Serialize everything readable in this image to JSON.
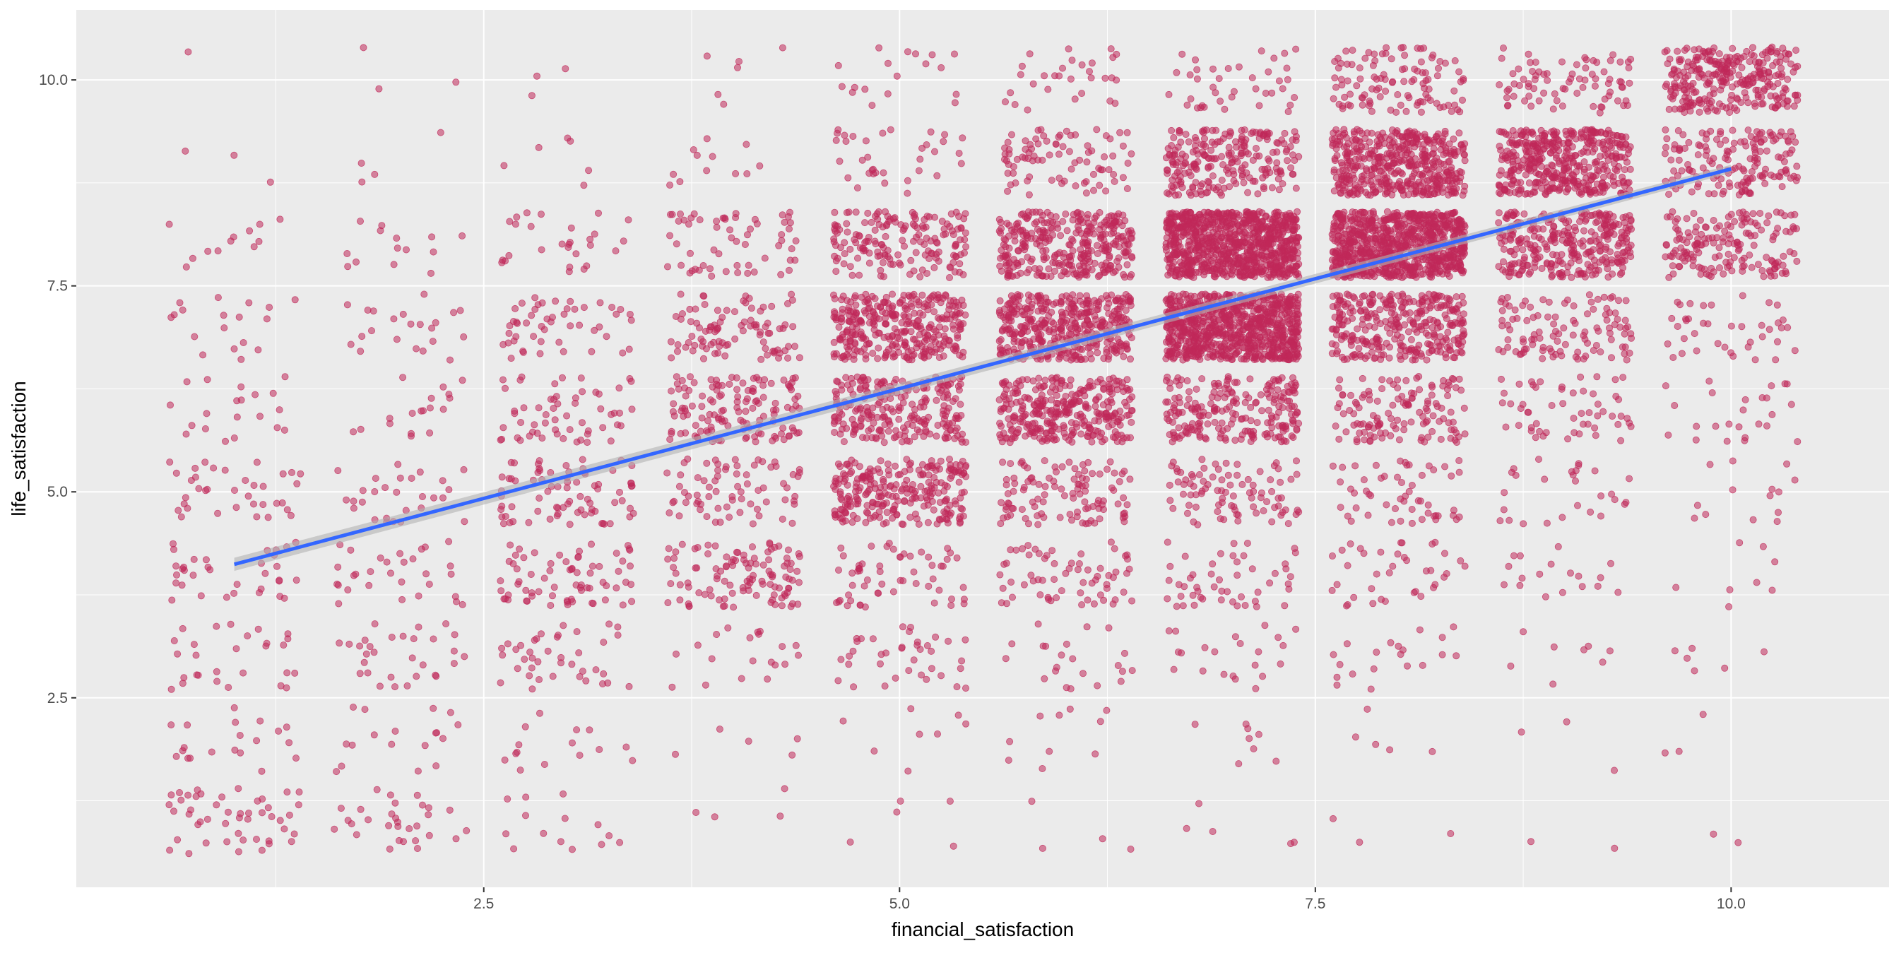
{
  "chart_data": {
    "type": "scatter",
    "title": "",
    "xlabel": "financial_satisfaction",
    "ylabel": "life_satisfaction",
    "xlim": [
      0.05,
      10.95
    ],
    "ylim": [
      0.2,
      10.85
    ],
    "x_ticks": [
      {
        "value": 2.5,
        "label": "2.5"
      },
      {
        "value": 5.0,
        "label": "5.0"
      },
      {
        "value": 7.5,
        "label": "7.5"
      },
      {
        "value": 10.0,
        "label": "10.0"
      }
    ],
    "y_ticks": [
      {
        "value": 2.5,
        "label": "2.5"
      },
      {
        "value": 5.0,
        "label": "5.0"
      },
      {
        "value": 7.5,
        "label": "7.5"
      },
      {
        "value": 10.0,
        "label": "10.0"
      }
    ],
    "grid": true,
    "panel_background": "#ebebeb",
    "point_color": "#c0285a",
    "point_opacity": 0.55,
    "jitter": {
      "x": 0.4,
      "y": 0.4
    },
    "point_groups": [
      {
        "x": 1,
        "counts": {
          "1": 48,
          "2": 20,
          "3": 28,
          "4": 34,
          "5": 36,
          "6": 20,
          "7": 18,
          "8": 12,
          "9": 3,
          "10": 1
        }
      },
      {
        "x": 2,
        "counts": {
          "1": 30,
          "2": 18,
          "3": 30,
          "4": 30,
          "5": 28,
          "6": 18,
          "7": 22,
          "8": 14,
          "9": 4,
          "10": 3
        }
      },
      {
        "x": 3,
        "counts": {
          "1": 14,
          "2": 15,
          "3": 40,
          "4": 70,
          "5": 78,
          "6": 58,
          "7": 50,
          "8": 28,
          "9": 6,
          "10": 3
        }
      },
      {
        "x": 4,
        "counts": {
          "1": 4,
          "2": 5,
          "3": 20,
          "4": 110,
          "5": 72,
          "6": 135,
          "7": 95,
          "8": 60,
          "9": 12,
          "10": 6
        }
      },
      {
        "x": 5,
        "counts": {
          "1": 5,
          "2": 8,
          "3": 38,
          "4": 58,
          "5": 260,
          "6": 240,
          "7": 330,
          "8": 170,
          "9": 35,
          "10": 18
        }
      },
      {
        "x": 6,
        "counts": {
          "1": 4,
          "2": 10,
          "3": 22,
          "4": 65,
          "5": 110,
          "6": 320,
          "7": 420,
          "8": 330,
          "9": 85,
          "10": 30
        }
      },
      {
        "x": 7,
        "counts": {
          "1": 5,
          "2": 8,
          "3": 22,
          "4": 50,
          "5": 90,
          "6": 220,
          "7": 820,
          "8": 850,
          "9": 230,
          "10": 40
        }
      },
      {
        "x": 8,
        "counts": {
          "1": 3,
          "2": 5,
          "3": 20,
          "4": 38,
          "5": 55,
          "6": 130,
          "7": 320,
          "8": 850,
          "9": 460,
          "10": 110
        }
      },
      {
        "x": 9,
        "counts": {
          "1": 2,
          "2": 3,
          "3": 8,
          "4": 18,
          "5": 28,
          "6": 55,
          "7": 110,
          "8": 310,
          "9": 430,
          "10": 80
        }
      },
      {
        "x": 10,
        "counts": {
          "1": 2,
          "2": 3,
          "3": 6,
          "4": 8,
          "5": 14,
          "6": 25,
          "7": 40,
          "8": 170,
          "9": 160,
          "10": 290
        }
      }
    ],
    "regression": {
      "method": "lm",
      "x_range": [
        1.0,
        10.0
      ],
      "y_start": 4.12,
      "y_end": 8.92,
      "se_start": 0.08,
      "se_end": 0.05,
      "line_color": "#3366ff",
      "band_color": "#b3b3b3"
    }
  }
}
